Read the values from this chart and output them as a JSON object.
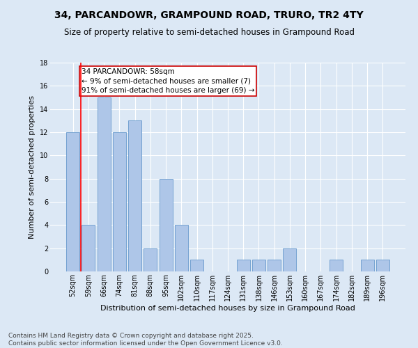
{
  "title": "34, PARCANDOWR, GRAMPOUND ROAD, TRURO, TR2 4TY",
  "subtitle": "Size of property relative to semi-detached houses in Grampound Road",
  "xlabel": "Distribution of semi-detached houses by size in Grampound Road",
  "ylabel": "Number of semi-detached properties",
  "categories": [
    "52sqm",
    "59sqm",
    "66sqm",
    "74sqm",
    "81sqm",
    "88sqm",
    "95sqm",
    "102sqm",
    "110sqm",
    "117sqm",
    "124sqm",
    "131sqm",
    "138sqm",
    "146sqm",
    "153sqm",
    "160sqm",
    "167sqm",
    "174sqm",
    "182sqm",
    "189sqm",
    "196sqm"
  ],
  "values": [
    12,
    4,
    15,
    12,
    13,
    2,
    8,
    4,
    1,
    0,
    0,
    1,
    1,
    1,
    2,
    0,
    0,
    1,
    0,
    1,
    1
  ],
  "bar_color": "#aec6e8",
  "bar_edge_color": "#6699cc",
  "annotation_text": "34 PARCANDOWR: 58sqm\n← 9% of semi-detached houses are smaller (7)\n91% of semi-detached houses are larger (69) →",
  "annotation_box_color": "#ffffff",
  "annotation_box_edge_color": "#cc0000",
  "ylim": [
    0,
    18
  ],
  "yticks": [
    0,
    2,
    4,
    6,
    8,
    10,
    12,
    14,
    16,
    18
  ],
  "footer": "Contains HM Land Registry data © Crown copyright and database right 2025.\nContains public sector information licensed under the Open Government Licence v3.0.",
  "bg_color": "#dce8f5",
  "grid_color": "#ffffff",
  "title_fontsize": 10,
  "subtitle_fontsize": 8.5,
  "axis_label_fontsize": 8,
  "tick_fontsize": 7,
  "annotation_fontsize": 7.5,
  "footer_fontsize": 6.5
}
